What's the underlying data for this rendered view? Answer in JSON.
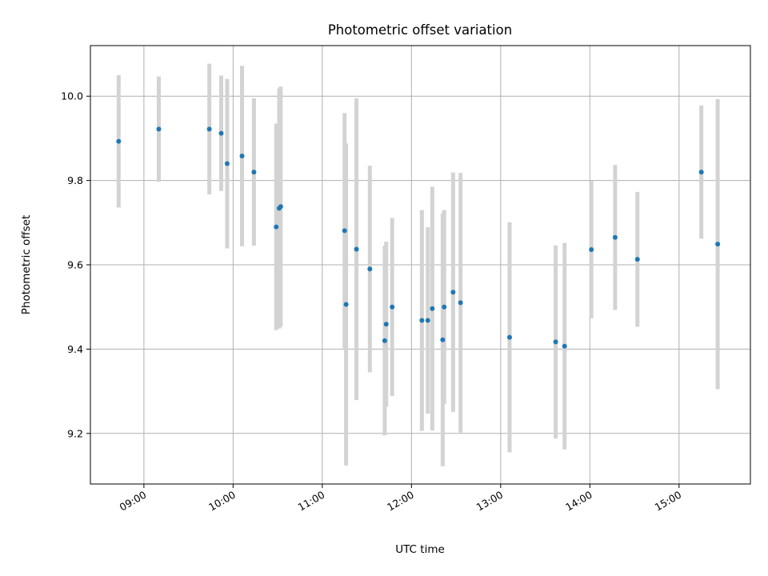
{
  "chart_data": {
    "type": "scatter",
    "title": "Photometric offset variation",
    "xlabel": "UTC time",
    "ylabel": "Photometric offset",
    "x_tick_labels": [
      "09:00",
      "10:00",
      "11:00",
      "12:00",
      "13:00",
      "14:00",
      "15:00"
    ],
    "x_tick_values": [
      "09:00",
      "10:00",
      "11:00",
      "12:00",
      "13:00",
      "14:00",
      "15:00"
    ],
    "y_ticks": [
      9.2,
      9.4,
      9.6,
      9.8,
      10.0
    ],
    "y_tick_labels": [
      "9.2",
      "9.4",
      "9.6",
      "9.8",
      "10.0"
    ],
    "xlim": [
      "08:24",
      "15:48"
    ],
    "ylim": [
      9.08,
      10.12
    ],
    "grid": true,
    "x_tick_label_rotation_deg": 30,
    "series": [
      {
        "marker_color": "#1f77b4",
        "errorbar_color": "#d3d3d3",
        "points": [
          {
            "x": "08:43",
            "y": 9.893,
            "err": 0.157
          },
          {
            "x": "09:10",
            "y": 9.922,
            "err": 0.125
          },
          {
            "x": "09:44",
            "y": 9.922,
            "err": 0.155
          },
          {
            "x": "09:52",
            "y": 9.912,
            "err": 0.137
          },
          {
            "x": "09:56",
            "y": 9.84,
            "err": 0.201
          },
          {
            "x": "10:06",
            "y": 9.858,
            "err": 0.214
          },
          {
            "x": "10:14",
            "y": 9.82,
            "err": 0.175
          },
          {
            "x": "10:29",
            "y": 9.69,
            "err": 0.245
          },
          {
            "x": "10:31",
            "y": 9.734,
            "err": 0.285
          },
          {
            "x": "10:32",
            "y": 9.738,
            "err": 0.285
          },
          {
            "x": "11:15",
            "y": 9.681,
            "err": 0.279
          },
          {
            "x": "11:16",
            "y": 9.506,
            "err": 0.382
          },
          {
            "x": "11:23",
            "y": 9.637,
            "err": 0.358
          },
          {
            "x": "11:32",
            "y": 9.59,
            "err": 0.245
          },
          {
            "x": "11:42",
            "y": 9.42,
            "err": 0.225
          },
          {
            "x": "11:43",
            "y": 9.459,
            "err": 0.196
          },
          {
            "x": "11:47",
            "y": 9.5,
            "err": 0.211
          },
          {
            "x": "12:07",
            "y": 9.468,
            "err": 0.262
          },
          {
            "x": "12:11",
            "y": 9.468,
            "err": 0.221
          },
          {
            "x": "12:14",
            "y": 9.496,
            "err": 0.289
          },
          {
            "x": "12:21",
            "y": 9.422,
            "err": 0.3
          },
          {
            "x": "12:22",
            "y": 9.5,
            "err": 0.23
          },
          {
            "x": "12:28",
            "y": 9.535,
            "err": 0.284
          },
          {
            "x": "12:33",
            "y": 9.51,
            "err": 0.308
          },
          {
            "x": "13:06",
            "y": 9.428,
            "err": 0.273
          },
          {
            "x": "13:37",
            "y": 9.417,
            "err": 0.229
          },
          {
            "x": "13:43",
            "y": 9.407,
            "err": 0.245
          },
          {
            "x": "14:01",
            "y": 9.636,
            "err": 0.163
          },
          {
            "x": "14:17",
            "y": 9.665,
            "err": 0.172
          },
          {
            "x": "14:32",
            "y": 9.613,
            "err": 0.16
          },
          {
            "x": "15:15",
            "y": 9.82,
            "err": 0.158
          },
          {
            "x": "15:26",
            "y": 9.649,
            "err": 0.344
          }
        ]
      }
    ]
  }
}
